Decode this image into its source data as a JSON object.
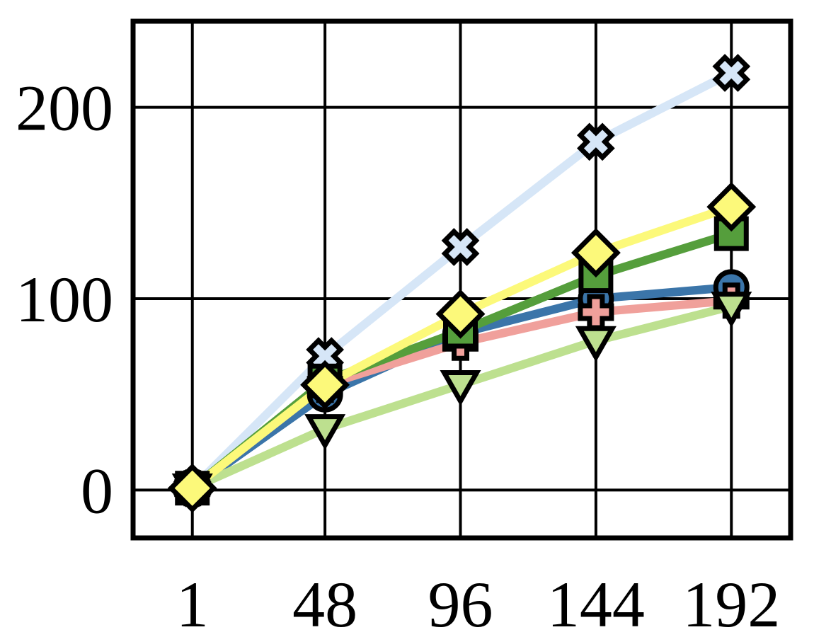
{
  "chart_data": {
    "type": "line",
    "title": "",
    "xlabel": "",
    "ylabel": "",
    "x": [
      1,
      48,
      96,
      144,
      192
    ],
    "x_tick_labels": [
      "1",
      "48",
      "96",
      "144",
      "192"
    ],
    "y_ticks": [
      0,
      100,
      200
    ],
    "y_tick_labels": [
      "0",
      "100",
      "200"
    ],
    "xlim": [
      -20,
      213
    ],
    "ylim": [
      -25,
      245
    ],
    "grid": true,
    "series": [
      {
        "color": "#d6e6f7",
        "marker": "x-cross",
        "values": [
          1,
          70,
          127,
          182,
          218
        ]
      },
      {
        "color": "#3b75a9",
        "marker": "circle",
        "values": [
          1,
          50,
          82,
          100,
          106
        ]
      },
      {
        "color": "#f0a09b",
        "marker": "plus",
        "values": [
          1,
          55,
          77,
          93,
          99
        ]
      },
      {
        "color": "#bde08f",
        "marker": "triangle-down",
        "values": [
          1,
          32,
          55,
          78,
          96
        ]
      },
      {
        "color": "#559e3c",
        "marker": "square",
        "values": [
          1,
          57,
          83,
          112,
          134
        ]
      },
      {
        "color": "#fcf97a",
        "marker": "diamond",
        "values": [
          1,
          55,
          92,
          124,
          148
        ]
      }
    ]
  }
}
